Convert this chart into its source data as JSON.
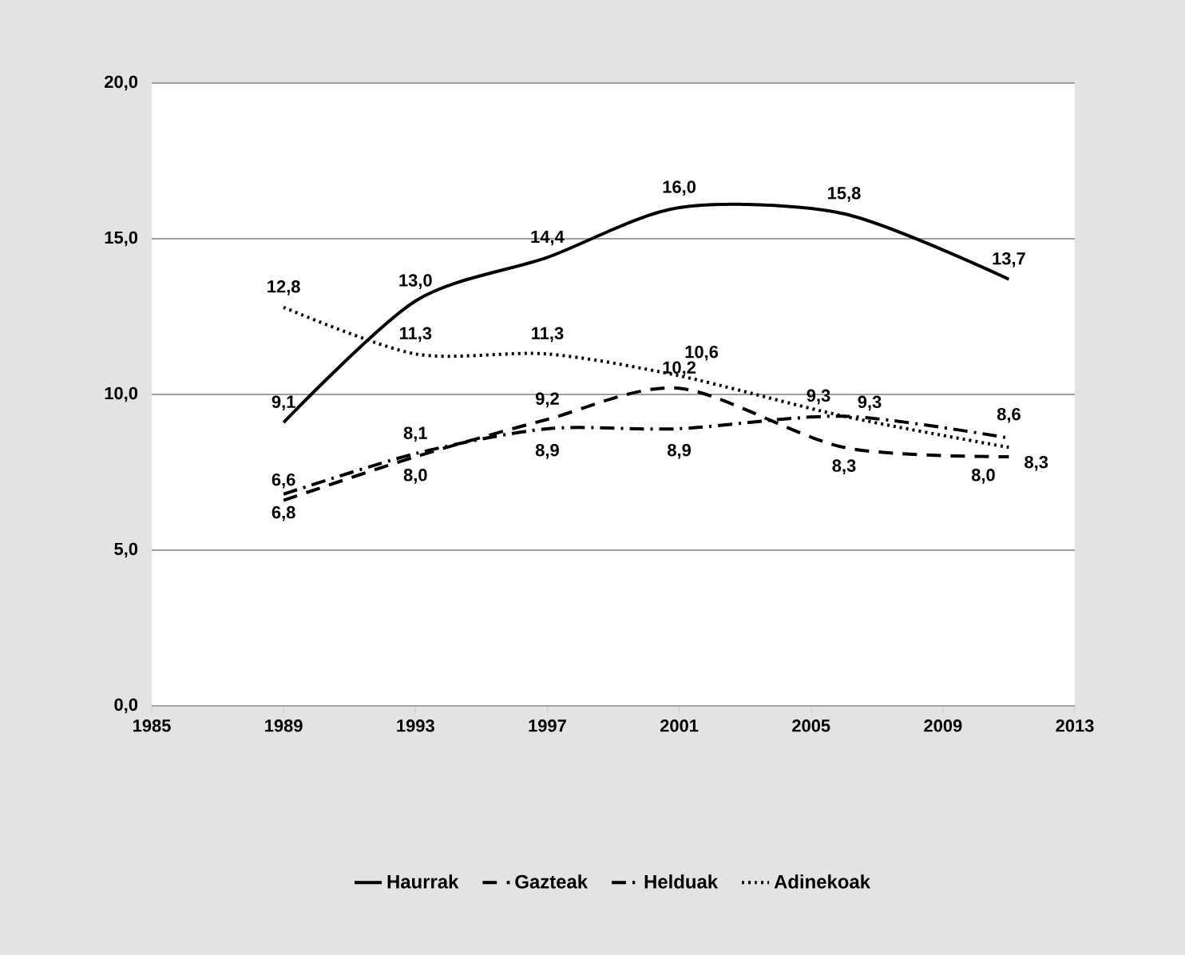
{
  "chart_data": {
    "type": "line",
    "x": [
      1989,
      1993,
      1997,
      2001,
      2006,
      2011
    ],
    "xlim": [
      1985,
      2013
    ],
    "xticks": [
      1985,
      1989,
      1993,
      1997,
      2001,
      2005,
      2009,
      2013
    ],
    "ylim": [
      0,
      20
    ],
    "yticks": [
      {
        "value": 0,
        "label": "0,0"
      },
      {
        "value": 5,
        "label": "5,0"
      },
      {
        "value": 10,
        "label": "10,0"
      },
      {
        "value": 15,
        "label": "15,0"
      },
      {
        "value": 20,
        "label": "20,0"
      }
    ],
    "grid": "y",
    "legend": "bottom",
    "marker": "none",
    "series": [
      {
        "name": "Haurrak",
        "color": "#000000",
        "line_style": "solid",
        "values": [
          9.1,
          13.0,
          14.4,
          16.0,
          15.8,
          13.7
        ],
        "value_labels": [
          "9,1",
          "13,0",
          "14,4",
          "16,0",
          "15,8",
          "13,7"
        ]
      },
      {
        "name": "Gazteak",
        "color": "#000000",
        "line_style": "dashed",
        "values": [
          6.6,
          8.0,
          9.2,
          10.2,
          8.3,
          8.0
        ],
        "value_labels": [
          "6,6",
          "8,0",
          "9,2",
          "10,2",
          "8,3",
          "8,0"
        ]
      },
      {
        "name": "Helduak",
        "color": "#000000",
        "line_style": "dashdot",
        "values": [
          6.8,
          8.1,
          8.9,
          8.9,
          9.3,
          8.6
        ],
        "value_labels": [
          "6,8",
          "8,1",
          "8,9",
          "8,9",
          "9,3",
          "8,6"
        ]
      },
      {
        "name": "Adinekoak",
        "color": "#000000",
        "line_style": "dotted",
        "values": [
          12.8,
          11.3,
          11.3,
          10.6,
          9.3,
          8.3
        ],
        "value_labels": [
          "12,8",
          "11,3",
          "11,3",
          "10,6",
          "9,3",
          "8,3"
        ]
      }
    ]
  }
}
